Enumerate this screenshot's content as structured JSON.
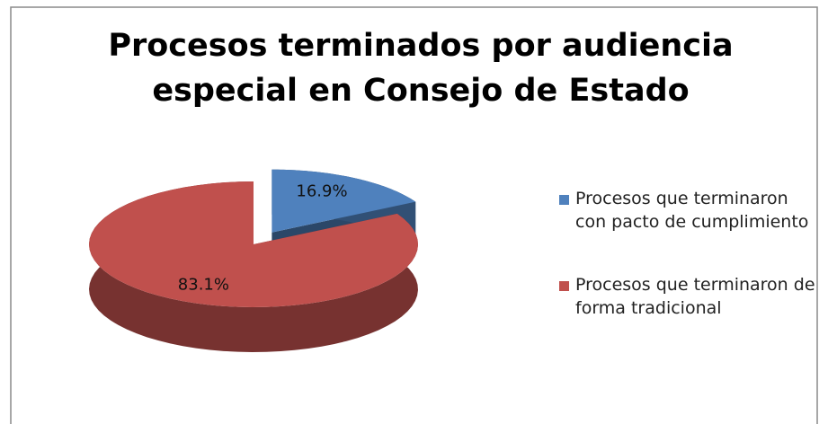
{
  "chart_data": {
    "type": "pie",
    "title": "Procesos terminados por audiencia especial en Consejo de Estado",
    "categories": [
      "Procesos que terminaron con pacto de cumplimiento",
      "Procesos que terminaron de forma tradicional"
    ],
    "values": [
      16.9,
      83.1
    ],
    "value_labels": [
      "16.9%",
      "83.1%"
    ],
    "colors": [
      "#4f81bd",
      "#c0504d"
    ],
    "legend": "right"
  }
}
